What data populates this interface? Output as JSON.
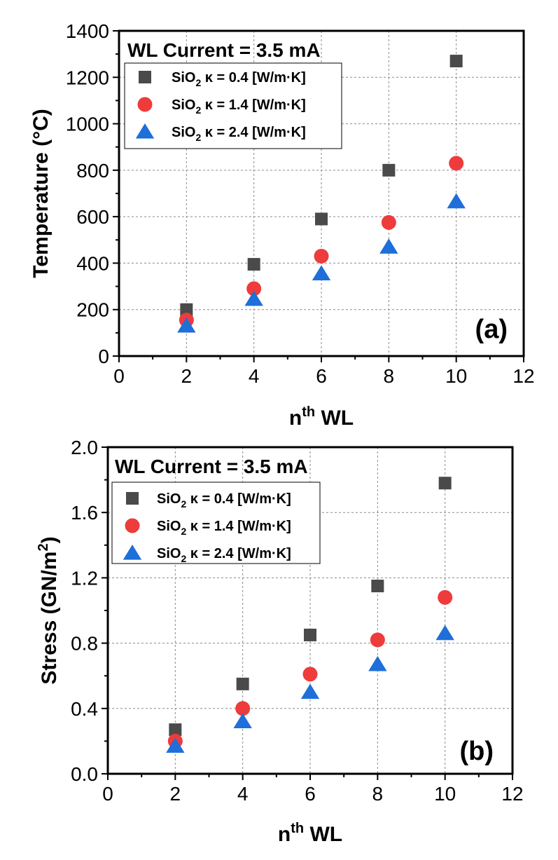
{
  "chart_data": [
    {
      "type": "scatter",
      "panel_label": "(a)",
      "title": "WL Current = 3.5 mA",
      "xlabel": {
        "base": "n",
        "sup": "th",
        "rest": " WL"
      },
      "ylabel": "Temperature (°C)",
      "xlim": [
        0,
        12
      ],
      "ylim": [
        0,
        1400
      ],
      "xticks": [
        0,
        2,
        4,
        6,
        8,
        10,
        12
      ],
      "yticks": [
        0,
        200,
        400,
        600,
        800,
        1000,
        1200,
        1400
      ],
      "grid": true,
      "legend_position": "top-left",
      "x": [
        2,
        4,
        6,
        8,
        10
      ],
      "series": [
        {
          "name": "SiO2 κ = 0.4 [W/m·K]",
          "label_pre": "SiO",
          "label_sub": "2",
          "label_post": " κ = 0.4 [W/m·K]",
          "marker": "square",
          "color": "#4a4a4a",
          "values": [
            200,
            395,
            590,
            800,
            1270
          ]
        },
        {
          "name": "SiO2 κ = 1.4 [W/m·K]",
          "label_pre": "SiO",
          "label_sub": "2",
          "label_post": " κ = 1.4 [W/m·K]",
          "marker": "circle",
          "color": "#ee3b3b",
          "values": [
            155,
            290,
            430,
            575,
            830
          ]
        },
        {
          "name": "SiO2 κ = 2.4 [W/m·K]",
          "label_pre": "SiO",
          "label_sub": "2",
          "label_post": " κ = 2.4 [W/m·K]",
          "marker": "triangle",
          "color": "#1e6fd9",
          "values": [
            130,
            245,
            355,
            470,
            665
          ]
        }
      ]
    },
    {
      "type": "scatter",
      "panel_label": "(b)",
      "title": "WL Current = 3.5 mA",
      "xlabel": {
        "base": "n",
        "sup": "th",
        "rest": " WL"
      },
      "ylabel": {
        "base": "Stress (GN/m",
        "sup": "2",
        "rest": ")"
      },
      "xlim": [
        0,
        12
      ],
      "ylim": [
        0,
        2.0
      ],
      "xticks": [
        0,
        2,
        4,
        6,
        8,
        10,
        12
      ],
      "yticks": [
        0.0,
        0.4,
        0.8,
        1.2,
        1.6,
        2.0
      ],
      "ytick_labels": [
        "0.0",
        "0.4",
        "0.8",
        "1.2",
        "1.6",
        "2.0"
      ],
      "grid": true,
      "legend_position": "top-left",
      "x": [
        2,
        4,
        6,
        8,
        10
      ],
      "series": [
        {
          "name": "SiO2 κ = 0.4 [W/m·K]",
          "label_pre": "SiO",
          "label_sub": "2",
          "label_post": " κ = 0.4 [W/m·K]",
          "marker": "square",
          "color": "#4a4a4a",
          "values": [
            0.27,
            0.55,
            0.85,
            1.15,
            1.78
          ]
        },
        {
          "name": "SiO2 κ = 1.4 [W/m·K]",
          "label_pre": "SiO",
          "label_sub": "2",
          "label_post": " κ = 1.4 [W/m·K]",
          "marker": "circle",
          "color": "#ee3b3b",
          "values": [
            0.2,
            0.4,
            0.61,
            0.82,
            1.08
          ]
        },
        {
          "name": "SiO2 κ = 2.4 [W/m·K]",
          "label_pre": "SiO",
          "label_sub": "2",
          "label_post": " κ = 2.4 [W/m·K]",
          "marker": "triangle",
          "color": "#1e6fd9",
          "values": [
            0.17,
            0.32,
            0.5,
            0.67,
            0.86
          ]
        }
      ]
    }
  ]
}
